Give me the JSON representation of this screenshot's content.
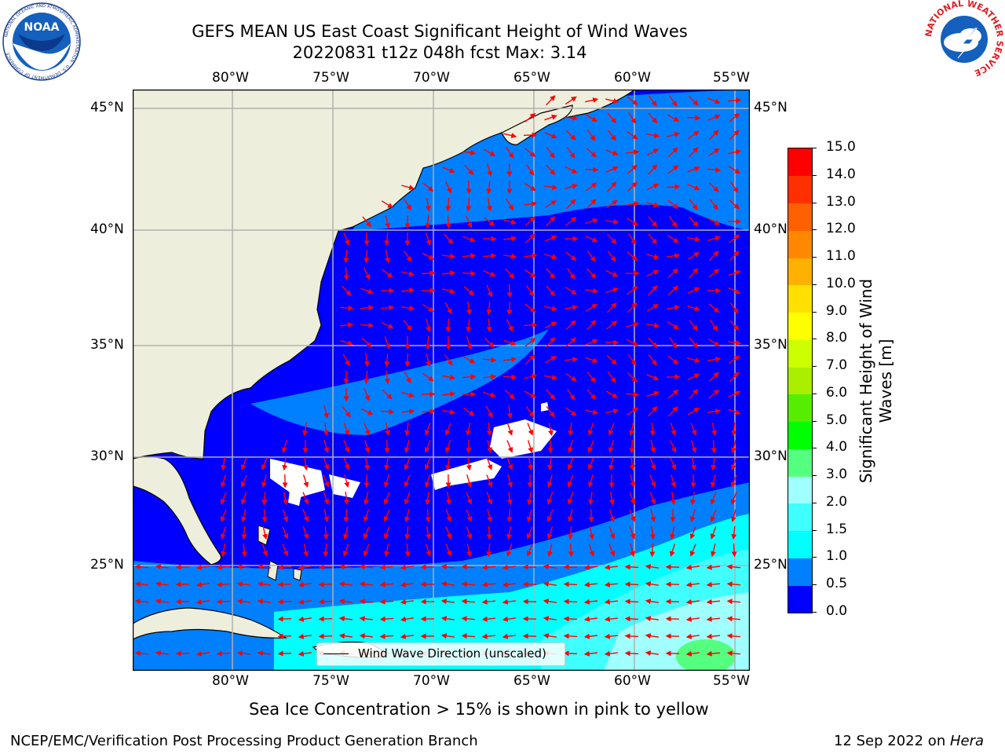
{
  "header": {
    "title_line1": "GEFS MEAN US East Coast Significant Height of Wind Waves",
    "title_line2": "20220831 t12z 048h fcst   Max: 3.14"
  },
  "logos": {
    "left": {
      "icon": "noaa-logo",
      "text": "NOAA",
      "ring_text": "NATIONAL OCEANIC AND ATMOSPHERIC ADMINISTRATION · U.S. DEPARTMENT OF COMMERCE"
    },
    "right": {
      "icon": "nws-logo",
      "ring_text": "NATIONAL WEATHER SERVICE"
    }
  },
  "map": {
    "lon_labels": [
      "80°W",
      "75°W",
      "70°W",
      "65°W",
      "60°W",
      "55°W"
    ],
    "lat_labels": [
      "45°N",
      "40°N",
      "35°N",
      "30°N",
      "25°N"
    ],
    "legend_label": "Wind Wave Direction (unscaled)",
    "note": "Sea Ice Concentration > 15% is shown in pink to yellow",
    "colors": {
      "land": "#eeeedc",
      "wave_0_05": "#0000ff",
      "wave_05_1": "#0080ff",
      "wave_1_15": "#00ffff",
      "wave_15_2": "#40ffff",
      "wave_2_3": "#a0ffff",
      "wave_3_4": "#55ff80",
      "arrow": "#ff0000",
      "grid": "#b0b0b0"
    }
  },
  "colorbar": {
    "label": "Significant Height of Wind Waves [m]",
    "ticks": [
      "0.0",
      "0.5",
      "1.0",
      "1.5",
      "2.0",
      "3.0",
      "4.0",
      "5.0",
      "6.0",
      "7.0",
      "8.0",
      "9.0",
      "10.0",
      "11.0",
      "12.0",
      "13.0",
      "14.0",
      "15.0"
    ],
    "colors": [
      "#0000ff",
      "#0080ff",
      "#00ffff",
      "#40ffff",
      "#a0ffff",
      "#55ff80",
      "#00ff00",
      "#55ee00",
      "#aaee00",
      "#ccff00",
      "#ffff00",
      "#ffe000",
      "#ffb000",
      "#ff8800",
      "#ff6000",
      "#ff3000",
      "#ff0000"
    ]
  },
  "footer": {
    "left": "NCEP/EMC/Verification Post Processing Product Generation Branch",
    "right_date": "12 Sep 2022 on ",
    "right_host": "Hera"
  }
}
